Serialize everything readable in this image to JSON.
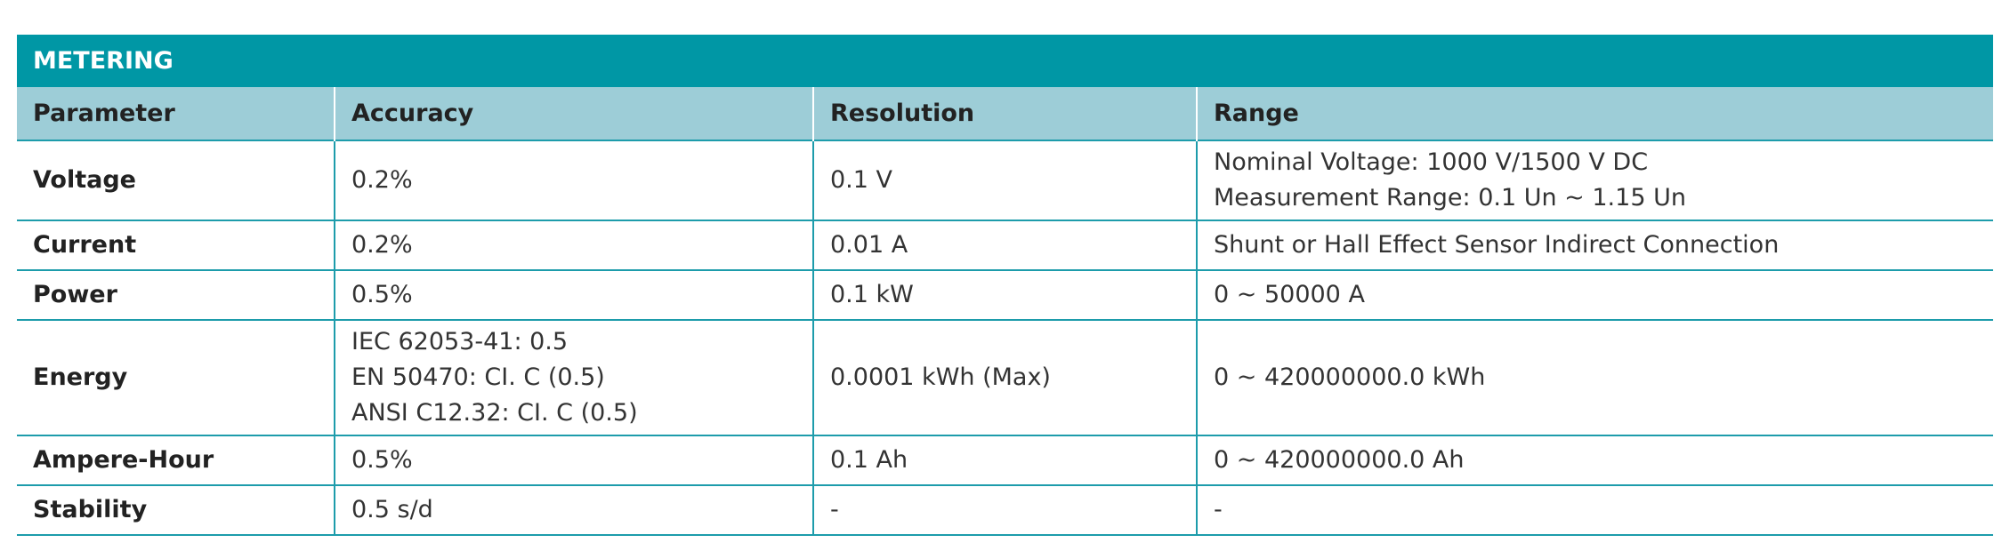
{
  "header": {
    "title": "METERING"
  },
  "table": {
    "columns": [
      "Parameter",
      "Accuracy",
      "Resolution",
      "Range"
    ],
    "rows": [
      [
        [
          "Voltage"
        ],
        [
          "0.2%"
        ],
        [
          "0.1 V"
        ],
        [
          "Nominal Voltage: 1000 V/1500 V DC",
          "Measurement Range: 0.1 Un ~ 1.15 Un"
        ]
      ],
      [
        [
          "Current"
        ],
        [
          "0.2%"
        ],
        [
          "0.01 A"
        ],
        [
          "Shunt or Hall Effect Sensor Indirect Connection"
        ]
      ],
      [
        [
          "Power"
        ],
        [
          "0.5%"
        ],
        [
          "0.1 kW"
        ],
        [
          "0 ~ 50000 A"
        ]
      ],
      [
        [
          "Energy"
        ],
        [
          "IEC 62053-41: 0.5",
          "EN 50470: CI. C (0.5)",
          "ANSI C12.32: CI. C (0.5)"
        ],
        [
          "0.0001 kWh (Max)"
        ],
        [
          "0 ~ 420000000.0 kWh"
        ]
      ],
      [
        [
          "Ampere-Hour"
        ],
        [
          "0.5%"
        ],
        [
          "0.1 Ah"
        ],
        [
          "0 ~ 420000000.0 Ah"
        ]
      ],
      [
        [
          "Stability"
        ],
        [
          "0.5 s/d"
        ],
        [
          "-"
        ],
        [
          "-"
        ]
      ]
    ]
  }
}
